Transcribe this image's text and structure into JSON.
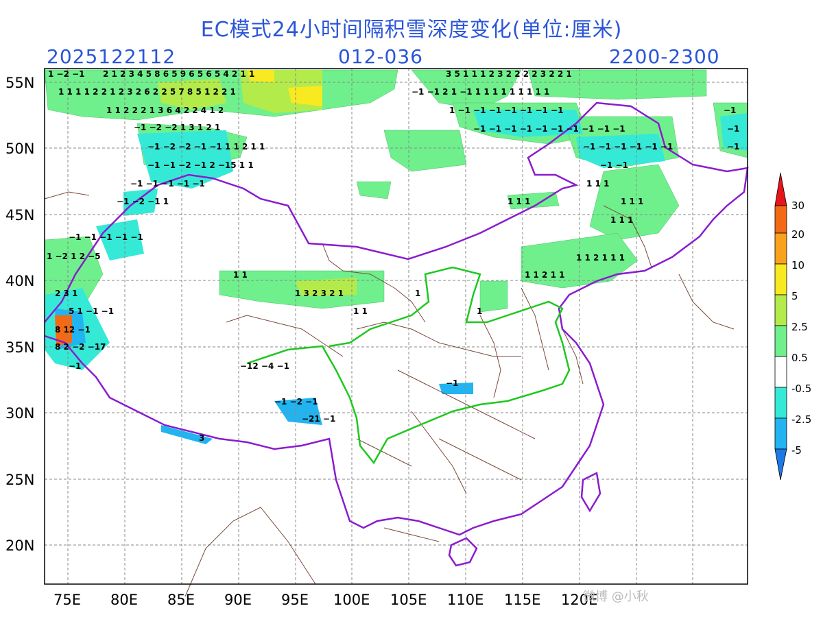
{
  "header": {
    "title": "EC模式24小时间隔积雪深度变化(单位:厘米)",
    "init_time": "2025122112",
    "forecast_range": "012-036",
    "valid_window": "2200-2300"
  },
  "axes": {
    "lat_labels": [
      "55N",
      "50N",
      "45N",
      "40N",
      "35N",
      "30N",
      "25N",
      "20N"
    ],
    "lon_labels": [
      "75E",
      "80E",
      "85E",
      "90E",
      "95E",
      "100E",
      "105E",
      "110E",
      "115E",
      "120E"
    ]
  },
  "colorbar": {
    "levels": [
      "30",
      "20",
      "10",
      "5",
      "2.5",
      "0.5",
      "-0.5",
      "-2.5",
      "-5"
    ],
    "colors": [
      "#e8141b",
      "#f46a14",
      "#f9a21e",
      "#f8e921",
      "#b3ec4a",
      "#6ff08c",
      "#ffffff",
      "#35e9d7",
      "#22b4f0",
      "#1e78e6"
    ]
  },
  "colors": {
    "title": "#2a55d8",
    "border_china": "#8a1ccf",
    "region_green": "#1ec81e",
    "province": "#7a4a3a"
  },
  "watermark": "微博 @小秋"
}
